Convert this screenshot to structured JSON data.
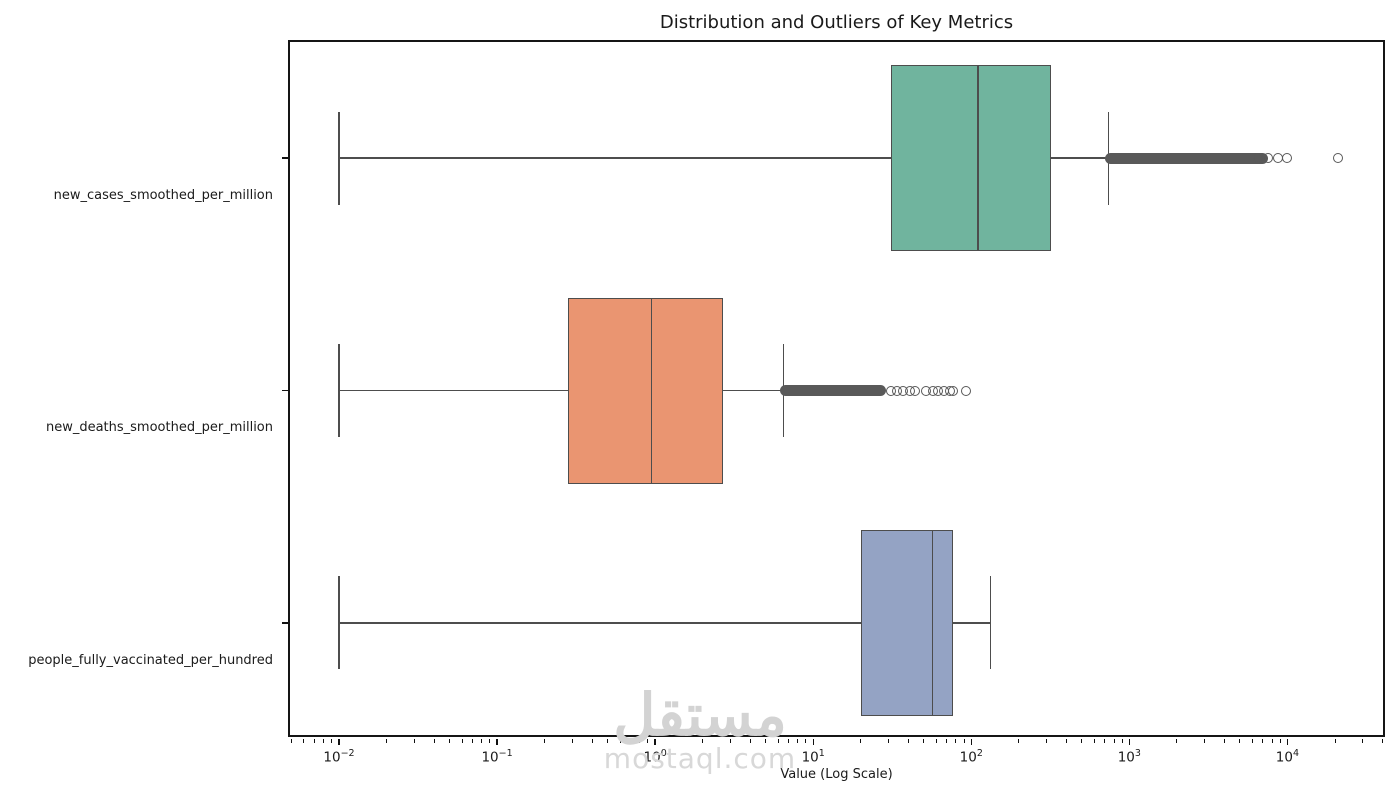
{
  "chart_data": {
    "type": "box",
    "orientation": "horizontal",
    "title": "Distribution and Outliers of Key Metrics",
    "xlabel": "Value (Log Scale)",
    "x_scale": "log",
    "x_tick_exponents": [
      -2,
      -1,
      0,
      1,
      2,
      3,
      4
    ],
    "log_min": -2.31,
    "log_max": 4.63,
    "grid": false,
    "legend": false,
    "line_color": "#4d4d4d",
    "flier_color": "#595959",
    "spine_color": "#151515",
    "series": [
      {
        "name": "new_cases_smoothed_per_million",
        "color": "#70b49e",
        "whisker_low": 0.01,
        "q1": 31,
        "median": 110,
        "q3": 320,
        "whisker_high": 740,
        "outlier_band": [
          700,
          7500
        ],
        "outlier_points": [
          6500,
          7500,
          8700,
          10000,
          21000
        ]
      },
      {
        "name": "new_deaths_smoothed_per_million",
        "color": "#ea9571",
        "whisker_low": 0.01,
        "q1": 0.28,
        "median": 0.95,
        "q3": 2.7,
        "whisker_high": 6.5,
        "outlier_band": [
          6.2,
          29
        ],
        "outlier_points": [
          31,
          34,
          37,
          41,
          44,
          52,
          57,
          62,
          67,
          73,
          77,
          92
        ]
      },
      {
        "name": "people_fully_vaccinated_per_hundred",
        "color": "#94a3c4",
        "whisker_low": 0.01,
        "q1": 20,
        "median": 57,
        "q3": 77,
        "whisker_high": 132,
        "outlier_band": null,
        "outlier_points": []
      }
    ]
  },
  "watermark": {
    "arabic": "مستقل",
    "domain": "mostaql.com"
  }
}
